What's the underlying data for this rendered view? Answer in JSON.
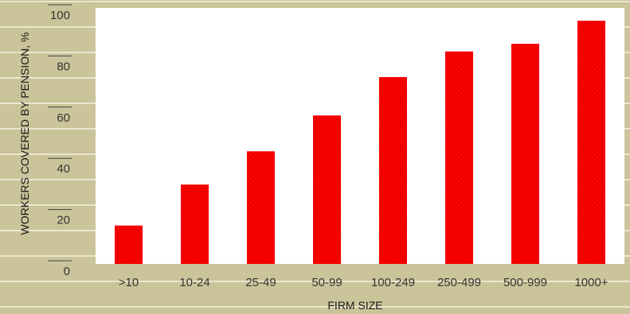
{
  "colors": {
    "background": "#cbc49a",
    "stripe": "#ebe6cd",
    "plot_area": "#ffffff",
    "bar": "#ff0000",
    "bar_texture": "#e00000",
    "tick_mark": "#444444"
  },
  "chart_data": {
    "type": "bar",
    "categories": [
      ">10",
      "10-24",
      "25-49",
      "50-99",
      "100-249",
      "250-499",
      "500-999",
      "1000+"
    ],
    "values": [
      15,
      31,
      44,
      58,
      73,
      83,
      86,
      95
    ],
    "xlabel": "FIRM SIZE",
    "ylabel": "WORKERS COVERED BY PENSION, %",
    "ylim": [
      0,
      100
    ],
    "yticks": [
      0,
      20,
      40,
      60,
      80,
      100
    ],
    "grid": false,
    "legend": "none"
  }
}
